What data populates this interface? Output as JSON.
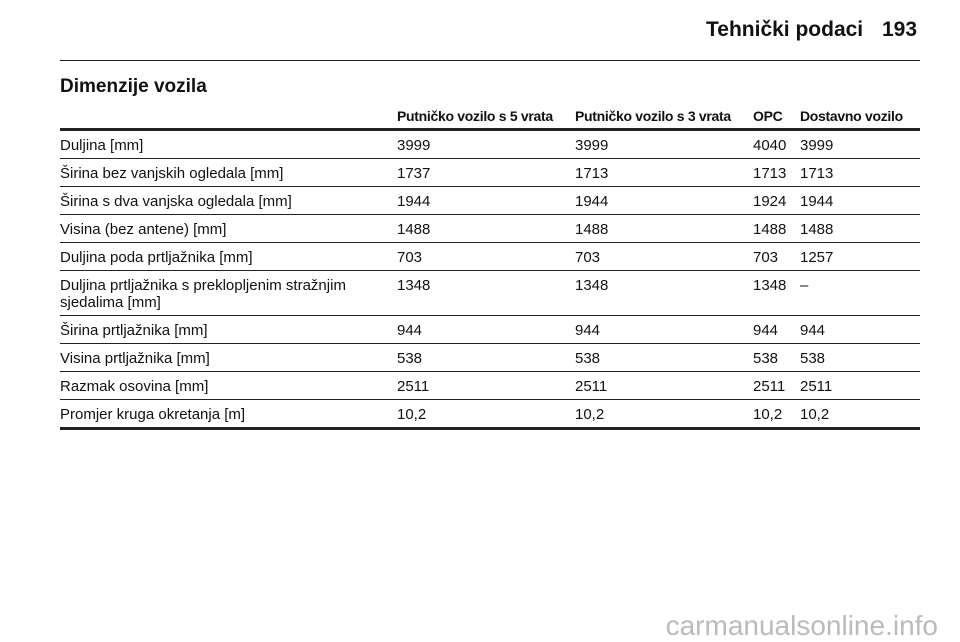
{
  "header": {
    "title": "Tehnički podaci",
    "page_number": "193"
  },
  "section": {
    "title": "Dimenzije vozila"
  },
  "table": {
    "columns": [
      "",
      "Putničko vozilo s 5 vrata",
      "Putničko vozilo s 3 vrata",
      "OPC",
      "Dostavno vozilo"
    ],
    "rows": [
      [
        "Duljina [mm]",
        "3999",
        "3999",
        "4040",
        "3999"
      ],
      [
        "Širina bez vanjskih ogledala [mm]",
        "1737",
        "1713",
        "1713",
        "1713"
      ],
      [
        "Širina s dva vanjska ogledala [mm]",
        "1944",
        "1944",
        "1924",
        "1944"
      ],
      [
        "Visina (bez antene) [mm]",
        "1488",
        "1488",
        "1488",
        "1488"
      ],
      [
        "Duljina poda prtljažnika [mm]",
        "703",
        "703",
        "703",
        "1257"
      ],
      [
        "Duljina prtljažnika s preklopljenim stražnjim sjedalima [mm]",
        "1348",
        "1348",
        "1348",
        "–"
      ],
      [
        "Širina prtljažnika [mm]",
        "944",
        "944",
        "944",
        "944"
      ],
      [
        "Visina prtljažnika [mm]",
        "538",
        "538",
        "538",
        "538"
      ],
      [
        "Razmak osovina [mm]",
        "2511",
        "2511",
        "2511",
        "2511"
      ],
      [
        "Promjer kruga okretanja [m]",
        "10,2",
        "10,2",
        "10,2",
        "10,2"
      ]
    ]
  },
  "watermark": "carmanualsonline.info"
}
